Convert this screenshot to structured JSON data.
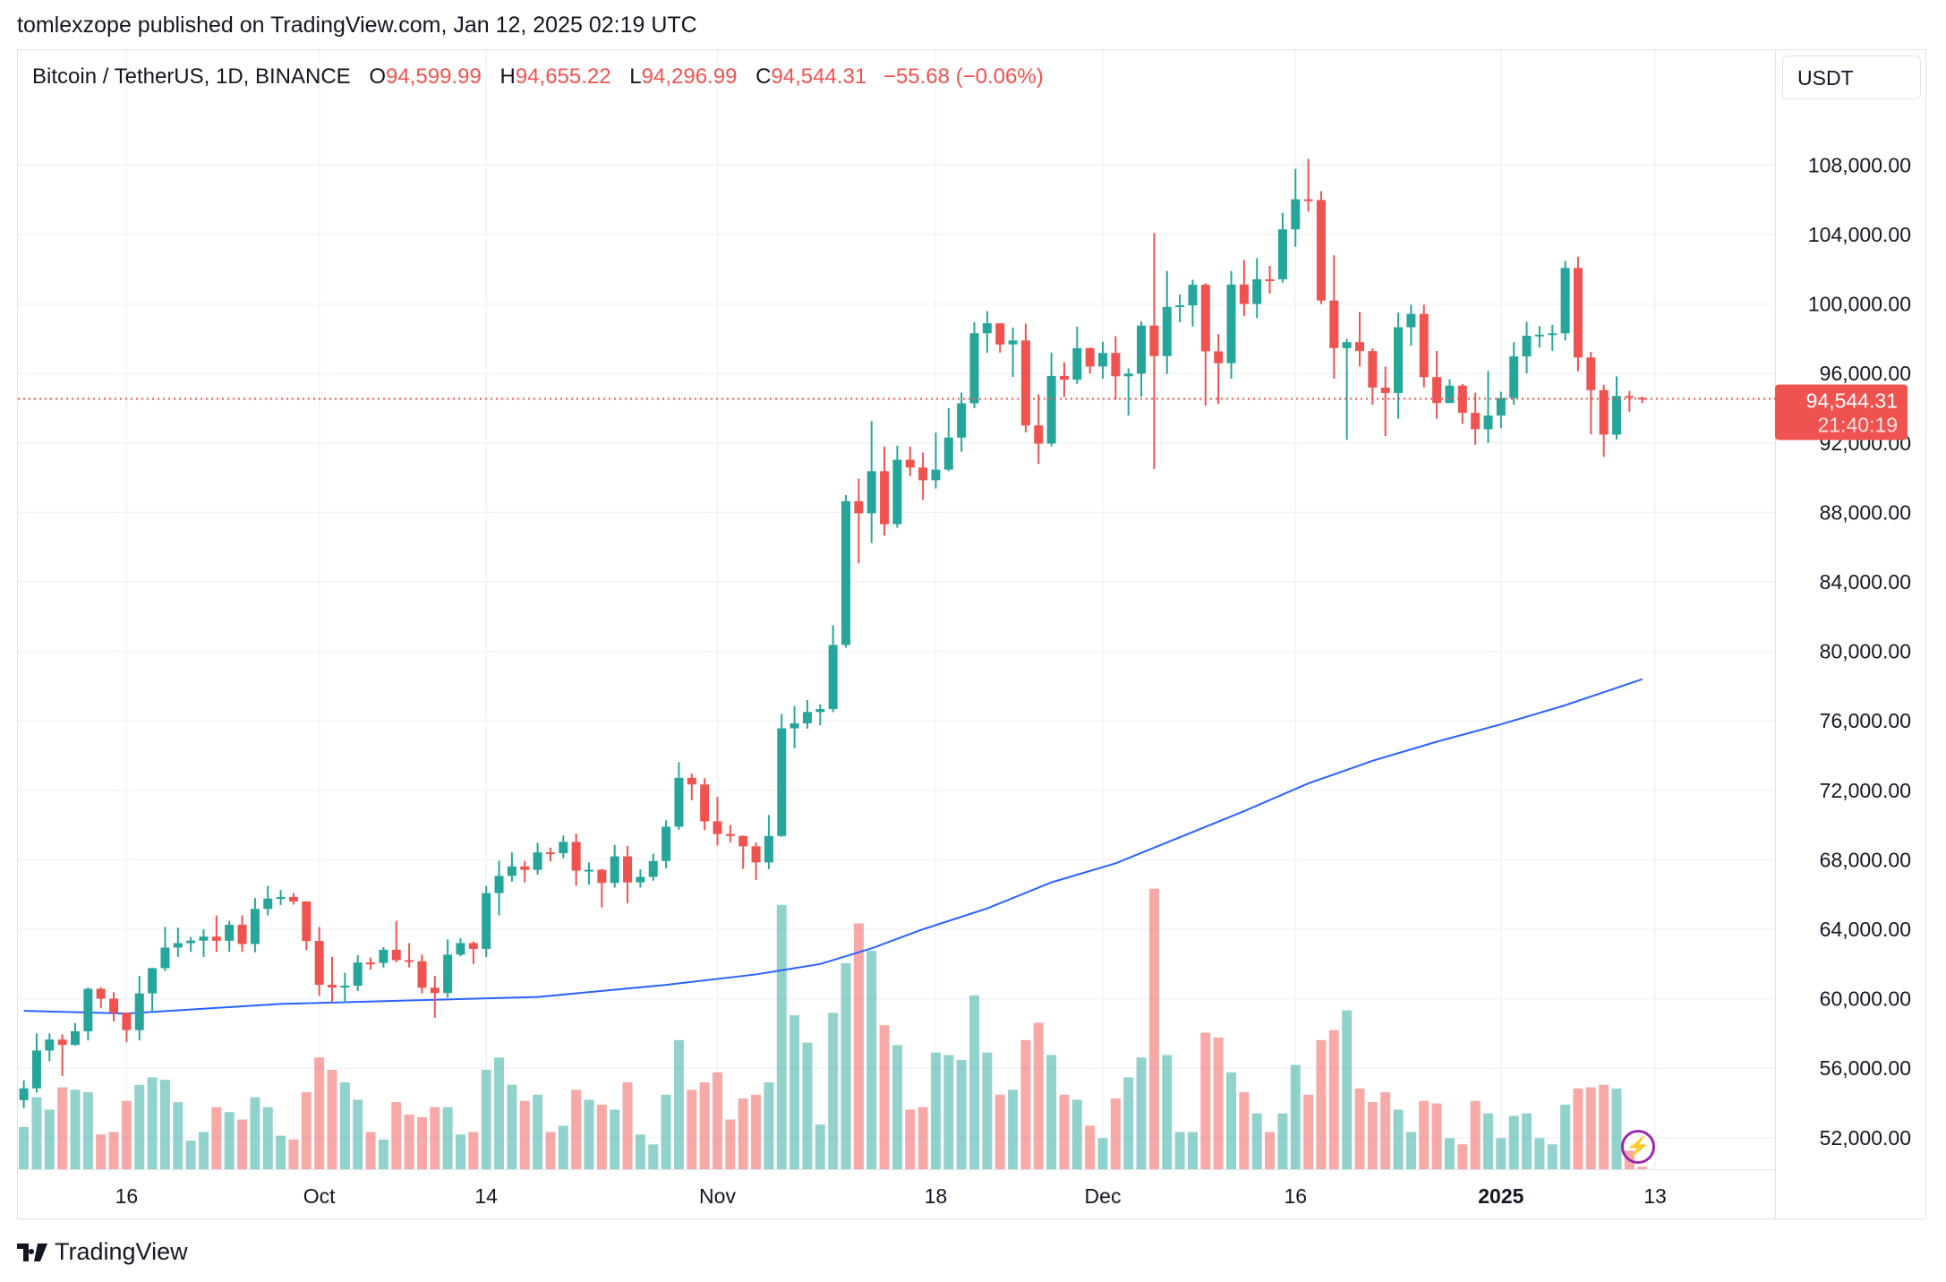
{
  "published": "tomlexzope published on TradingView.com, Jan 12, 2025 02:19 UTC",
  "legend": {
    "symbol": "Bitcoin / TetherUS, 1D, BINANCE",
    "o_label": "O",
    "o": "94,599.99",
    "h_label": "H",
    "h": "94,655.22",
    "l_label": "L",
    "l": "94,296.99",
    "c_label": "C",
    "c": "94,544.31",
    "change": "−55.68 (−0.06%)"
  },
  "currency": "USDT",
  "last_price": {
    "price": "94,544.31",
    "countdown": "21:40:19",
    "value": 94544.31
  },
  "logo_text": "TradingView",
  "colors": {
    "up": "#26a69a",
    "down": "#ef5350",
    "ma": "#2962ff",
    "grid": "#f0f3fa"
  },
  "chart_data": {
    "type": "candlestick",
    "title": "Bitcoin / TetherUS, 1D, BINANCE",
    "ylim": [
      50000,
      110000
    ],
    "y_ticks": [
      108000,
      104000,
      100000,
      96000,
      92000,
      88000,
      84000,
      80000,
      76000,
      72000,
      68000,
      64000,
      60000,
      56000,
      52000
    ],
    "y_tick_labels": [
      "108,000.00",
      "104,000.00",
      "100,000.00",
      "96,000.00",
      "92,000.00",
      "88,000.00",
      "84,000.00",
      "80,000.00",
      "76,000.00",
      "72,000.00",
      "68,000.00",
      "64,000.00",
      "60,000.00",
      "56,000.00",
      "52,000.00"
    ],
    "x_ticks": [
      {
        "index": 8,
        "label": "16"
      },
      {
        "index": 23,
        "label": "Oct"
      },
      {
        "index": 36,
        "label": "14"
      },
      {
        "index": 54,
        "label": "Nov"
      },
      {
        "index": 71,
        "label": "18"
      },
      {
        "index": 84,
        "label": "Dec"
      },
      {
        "index": 99,
        "label": "16"
      },
      {
        "index": 115,
        "label": "2025",
        "bold": true
      },
      {
        "index": 127,
        "label": "13"
      }
    ],
    "start_date": "2024-09-08",
    "first_open": 54160,
    "last_open": 94599.99,
    "close": [
      54841,
      57019,
      57648,
      57343,
      58127,
      60571,
      60005,
      59182,
      58192,
      60309,
      61759,
      62947,
      63201,
      63348,
      63578,
      63339,
      64262,
      63152,
      65173,
      65769,
      65858,
      65603,
      63327,
      60805,
      60649,
      60752,
      62086,
      62058,
      62819,
      62224,
      62160,
      60636,
      60326,
      62540,
      63206,
      62870,
      66083,
      67074,
      67620,
      67421,
      68428,
      68378,
      69031,
      67377,
      67426,
      66668,
      68198,
      66698,
      67015,
      67930,
      69907,
      72720,
      72339,
      70215,
      69483,
      69374,
      68775,
      67850,
      69372,
      75571,
      75857,
      76509,
      76677,
      80370,
      88647,
      87952,
      90375,
      87325,
      91032,
      90586,
      89855,
      90464,
      92310,
      94286,
      98317,
      98893,
      97672,
      97900,
      93010,
      91965,
      95863,
      95643,
      97460,
      96407,
      97185,
      95840,
      95992,
      98760,
      97001,
      99831,
      99923,
      101109,
      97276,
      96593,
      101125,
      100005,
      101424,
      101420,
      104298,
      106030,
      105991,
      100204,
      97461,
      97805,
      97292,
      95187,
      94881,
      98663,
      99429,
      95791,
      94299,
      95300,
      93738,
      92792,
      93576,
      94591,
      96984,
      98174,
      98236,
      98314,
      102078,
      96922,
      95043,
      92484,
      94701,
      94600,
      94544.31
    ],
    "high": [
      55300,
      58000,
      58000,
      57950,
      58600,
      60650,
      60660,
      60380,
      59210,
      61320,
      61790,
      64130,
      64100,
      63560,
      64000,
      64790,
      64480,
      64800,
      65800,
      66500,
      66260,
      66080,
      65600,
      64130,
      62400,
      61500,
      62500,
      62370,
      62970,
      64480,
      63200,
      62540,
      61320,
      63420,
      63480,
      63300,
      66500,
      67950,
      68420,
      67940,
      68980,
      68700,
      69400,
      69500,
      67840,
      67480,
      68850,
      68800,
      67450,
      68350,
      70270,
      73620,
      72960,
      72700,
      71630,
      70000,
      69400,
      69000,
      70580,
      76400,
      76850,
      77200,
      76950,
      81500,
      89000,
      89950,
      93260,
      91790,
      91850,
      91800,
      91450,
      92600,
      94000,
      94900,
      98950,
      99588,
      98770,
      98650,
      98870,
      94800,
      97200,
      96650,
      98690,
      97500,
      97830,
      98150,
      96300,
      99000,
      104088,
      101900,
      100550,
      101400,
      101200,
      98270,
      101900,
      102540,
      102650,
      102200,
      105250,
      107780,
      108353,
      106500,
      102800,
      98000,
      99540,
      97450,
      96400,
      99500,
      99960,
      99960,
      97300,
      95670,
      95400,
      94900,
      96150,
      94950,
      97800,
      98980,
      98730,
      98800,
      102480,
      102724,
      97250,
      95350,
      95836,
      95000,
      94655.22
    ],
    "low": [
      53700,
      54600,
      56400,
      55550,
      57300,
      57600,
      59450,
      58700,
      57500,
      57600,
      59170,
      61600,
      62400,
      62700,
      62400,
      62700,
      62700,
      62700,
      62670,
      64800,
      65400,
      65420,
      62800,
      60160,
      59800,
      59800,
      60450,
      61680,
      61800,
      62100,
      61800,
      60300,
      58900,
      60060,
      62450,
      62000,
      62400,
      64800,
      66750,
      66700,
      67150,
      67900,
      68100,
      66500,
      66570,
      65260,
      66400,
      65500,
      66400,
      66800,
      67500,
      69730,
      71430,
      69700,
      68820,
      69000,
      67480,
      66840,
      67460,
      69320,
      74420,
      75550,
      75750,
      76500,
      80220,
      85070,
      86230,
      86670,
      87120,
      90090,
      88720,
      89380,
      90370,
      91500,
      94000,
      97200,
      97200,
      95800,
      92600,
      90791,
      91800,
      94650,
      95400,
      96000,
      95700,
      94500,
      93580,
      94660,
      90500,
      95980,
      98950,
      98700,
      94150,
      94250,
      95700,
      99300,
      99200,
      100600,
      101220,
      103300,
      105320,
      100000,
      95700,
      92175,
      96400,
      94200,
      92400,
      93400,
      97600,
      95200,
      93400,
      94300,
      93100,
      91900,
      92000,
      92850,
      94200,
      96000,
      97500,
      97300,
      97900,
      96130,
      92500,
      91200,
      92200,
      93800,
      94296.99
    ],
    "volume": [
      34,
      58,
      48,
      66,
      64,
      62,
      28,
      30,
      55,
      68,
      74,
      72,
      54,
      23,
      30,
      50,
      46,
      40,
      58,
      50,
      27,
      24,
      62,
      90,
      80,
      70,
      56,
      30,
      24,
      54,
      44,
      42,
      50,
      50,
      28,
      30,
      80,
      90,
      68,
      55,
      60,
      30,
      35,
      64,
      56,
      52,
      48,
      70,
      28,
      20,
      60,
      104,
      64,
      70,
      78,
      40,
      57,
      60,
      70,
      213,
      124,
      102,
      36,
      126,
      166,
      198,
      176,
      116,
      100,
      48,
      50,
      94,
      92,
      88,
      140,
      94,
      60,
      64,
      104,
      118,
      92,
      60,
      56,
      35,
      25,
      57,
      74,
      90,
      226,
      92,
      30,
      30,
      110,
      106,
      78,
      62,
      45,
      30,
      45,
      84,
      60,
      104,
      112,
      128,
      65,
      54,
      62,
      48,
      30,
      55,
      53,
      25,
      20,
      55,
      45,
      25,
      43,
      45,
      25,
      20,
      52,
      65,
      66,
      68,
      65,
      15,
      2
    ],
    "ma_series": {
      "name": "Moving Average",
      "points": [
        [
          0,
          59300
        ],
        [
          8,
          59150
        ],
        [
          20,
          59700
        ],
        [
          30,
          59900
        ],
        [
          40,
          60100
        ],
        [
          50,
          60800
        ],
        [
          57,
          61400
        ],
        [
          62,
          62000
        ],
        [
          66,
          62900
        ],
        [
          70,
          64000
        ],
        [
          75,
          65200
        ],
        [
          80,
          66700
        ],
        [
          85,
          67800
        ],
        [
          90,
          69300
        ],
        [
          95,
          70800
        ],
        [
          100,
          72400
        ],
        [
          105,
          73700
        ],
        [
          110,
          74800
        ],
        [
          115,
          75800
        ],
        [
          120,
          76900
        ],
        [
          126,
          78400
        ]
      ]
    }
  }
}
